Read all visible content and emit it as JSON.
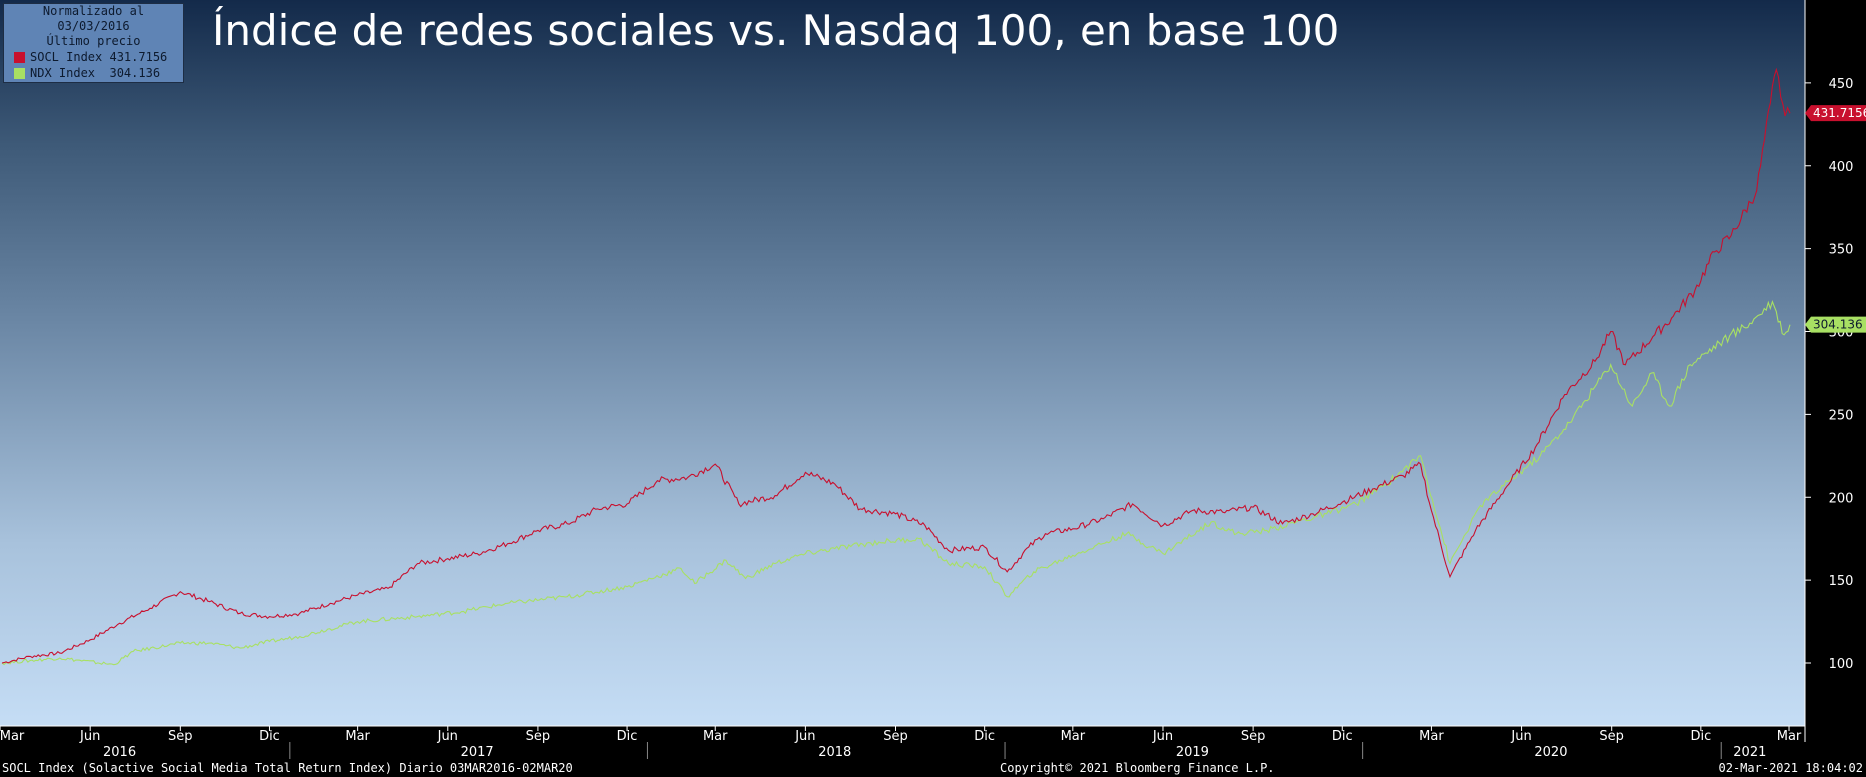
{
  "title": "Índice de redes sociales vs. Nasdaq 100, en base 100",
  "legend": {
    "header_line1": "Normalizado al 03/03/2016",
    "header_line2": "Último precio",
    "items": [
      {
        "name": "SOCL Index",
        "value": "431.7156",
        "color": "#c8102e"
      },
      {
        "name": "NDX Index",
        "value": "304.136",
        "color": "#a8e063"
      }
    ]
  },
  "footer": {
    "left": "SOCL Index (Solactive Social Media Total Return Index)  Diario 03MAR2016-02MAR20",
    "center": "Copyright© 2021 Bloomberg Finance L.P.",
    "right": "02-Mar-2021 18:04:02"
  },
  "chart_data": {
    "type": "line",
    "title": "Índice de redes sociales vs. Nasdaq 100, en base 100",
    "ylim": [
      62,
      500
    ],
    "y_ticks": [
      100,
      150,
      200,
      250,
      300,
      350,
      400,
      450
    ],
    "x_range": [
      "2016-03-03",
      "2021-03-02"
    ],
    "x_month_ticks": [
      {
        "label": "Mar",
        "date": "2016-03-01"
      },
      {
        "label": "Jun",
        "date": "2016-06-01"
      },
      {
        "label": "Sep",
        "date": "2016-09-01"
      },
      {
        "label": "Dic",
        "date": "2016-12-01"
      },
      {
        "label": "Mar",
        "date": "2017-03-01"
      },
      {
        "label": "Jun",
        "date": "2017-06-01"
      },
      {
        "label": "Sep",
        "date": "2017-09-01"
      },
      {
        "label": "Dic",
        "date": "2017-12-01"
      },
      {
        "label": "Mar",
        "date": "2018-03-01"
      },
      {
        "label": "Jun",
        "date": "2018-06-01"
      },
      {
        "label": "Sep",
        "date": "2018-09-01"
      },
      {
        "label": "Dic",
        "date": "2018-12-01"
      },
      {
        "label": "Mar",
        "date": "2019-03-01"
      },
      {
        "label": "Jun",
        "date": "2019-06-01"
      },
      {
        "label": "Sep",
        "date": "2019-09-01"
      },
      {
        "label": "Dic",
        "date": "2019-12-01"
      },
      {
        "label": "Mar",
        "date": "2020-03-01"
      },
      {
        "label": "Jun",
        "date": "2020-06-01"
      },
      {
        "label": "Sep",
        "date": "2020-09-01"
      },
      {
        "label": "Dic",
        "date": "2020-12-01"
      },
      {
        "label": "Mar",
        "date": "2021-03-01"
      }
    ],
    "x_year_labels": [
      {
        "label": "2016",
        "date": "2016-07-01"
      },
      {
        "label": "2017",
        "date": "2017-07-01"
      },
      {
        "label": "2018",
        "date": "2018-07-01"
      },
      {
        "label": "2019",
        "date": "2019-07-01"
      },
      {
        "label": "2020",
        "date": "2020-07-01"
      },
      {
        "label": "2021",
        "date": "2021-01-20"
      }
    ],
    "x_year_boundaries": [
      "2017-01-01",
      "2018-01-01",
      "2019-01-01",
      "2020-01-01",
      "2021-01-01"
    ],
    "series": [
      {
        "name": "SOCL Index",
        "color": "#c8102e",
        "last_value": "431.7156",
        "points": [
          [
            "2016-03-03",
            100
          ],
          [
            "2016-04-01",
            104
          ],
          [
            "2016-05-01",
            106
          ],
          [
            "2016-06-01",
            114
          ],
          [
            "2016-07-01",
            124
          ],
          [
            "2016-08-01",
            133
          ],
          [
            "2016-09-01",
            143
          ],
          [
            "2016-10-01",
            137
          ],
          [
            "2016-11-01",
            130
          ],
          [
            "2016-12-01",
            128
          ],
          [
            "2017-01-01",
            130
          ],
          [
            "2017-02-01",
            136
          ],
          [
            "2017-03-01",
            141
          ],
          [
            "2017-04-01",
            145
          ],
          [
            "2017-05-01",
            160
          ],
          [
            "2017-06-01",
            163
          ],
          [
            "2017-07-01",
            166
          ],
          [
            "2017-08-01",
            172
          ],
          [
            "2017-09-01",
            180
          ],
          [
            "2017-10-01",
            184
          ],
          [
            "2017-11-01",
            193
          ],
          [
            "2017-12-01",
            196
          ],
          [
            "2018-01-01",
            210
          ],
          [
            "2018-02-01",
            212
          ],
          [
            "2018-03-01",
            220
          ],
          [
            "2018-03-25",
            196
          ],
          [
            "2018-05-01",
            201
          ],
          [
            "2018-06-01",
            215
          ],
          [
            "2018-07-01",
            208
          ],
          [
            "2018-07-27",
            193
          ],
          [
            "2018-09-01",
            190
          ],
          [
            "2018-10-01",
            183
          ],
          [
            "2018-10-25",
            168
          ],
          [
            "2018-12-01",
            170
          ],
          [
            "2018-12-24",
            155
          ],
          [
            "2019-01-15",
            170
          ],
          [
            "2019-02-01",
            178
          ],
          [
            "2019-03-01",
            181
          ],
          [
            "2019-04-01",
            187
          ],
          [
            "2019-05-01",
            196
          ],
          [
            "2019-06-01",
            183
          ],
          [
            "2019-07-01",
            192
          ],
          [
            "2019-08-01",
            191
          ],
          [
            "2019-09-01",
            194
          ],
          [
            "2019-10-01",
            184
          ],
          [
            "2019-11-01",
            190
          ],
          [
            "2019-12-01",
            197
          ],
          [
            "2020-01-01",
            205
          ],
          [
            "2020-02-01",
            213
          ],
          [
            "2020-02-19",
            220
          ],
          [
            "2020-03-01",
            192
          ],
          [
            "2020-03-20",
            152
          ],
          [
            "2020-04-15",
            180
          ],
          [
            "2020-05-15",
            205
          ],
          [
            "2020-06-15",
            230
          ],
          [
            "2020-07-15",
            262
          ],
          [
            "2020-08-15",
            282
          ],
          [
            "2020-08-31",
            300
          ],
          [
            "2020-09-15",
            280
          ],
          [
            "2020-10-15",
            298
          ],
          [
            "2020-11-01",
            308
          ],
          [
            "2020-11-25",
            325
          ],
          [
            "2020-12-15",
            348
          ],
          [
            "2021-01-01",
            358
          ],
          [
            "2021-01-27",
            385
          ],
          [
            "2021-02-10",
            438
          ],
          [
            "2021-02-16",
            458
          ],
          [
            "2021-02-25",
            430
          ],
          [
            "2021-03-02",
            431.7156
          ]
        ]
      },
      {
        "name": "NDX Index",
        "color": "#a8e063",
        "last_value": "304.136",
        "points": [
          [
            "2016-03-03",
            100
          ],
          [
            "2016-05-01",
            103
          ],
          [
            "2016-06-25",
            99
          ],
          [
            "2016-07-15",
            107
          ],
          [
            "2016-09-01",
            112
          ],
          [
            "2016-10-01",
            112
          ],
          [
            "2016-11-01",
            109
          ],
          [
            "2016-12-01",
            113
          ],
          [
            "2017-01-01",
            116
          ],
          [
            "2017-03-01",
            125
          ],
          [
            "2017-05-01",
            128
          ],
          [
            "2017-06-15",
            131
          ],
          [
            "2017-08-01",
            136
          ],
          [
            "2017-10-01",
            140
          ],
          [
            "2017-12-01",
            146
          ],
          [
            "2018-01-25",
            157
          ],
          [
            "2018-02-08",
            148
          ],
          [
            "2018-03-12",
            162
          ],
          [
            "2018-04-01",
            151
          ],
          [
            "2018-05-01",
            160
          ],
          [
            "2018-06-01",
            166
          ],
          [
            "2018-07-01",
            169
          ],
          [
            "2018-08-15",
            173
          ],
          [
            "2018-09-25",
            175
          ],
          [
            "2018-10-25",
            160
          ],
          [
            "2018-12-01",
            158
          ],
          [
            "2018-12-24",
            140
          ],
          [
            "2019-01-20",
            155
          ],
          [
            "2019-03-01",
            165
          ],
          [
            "2019-04-25",
            178
          ],
          [
            "2019-06-01",
            166
          ],
          [
            "2019-07-20",
            185
          ],
          [
            "2019-08-15",
            178
          ],
          [
            "2019-09-15",
            180
          ],
          [
            "2019-10-15",
            185
          ],
          [
            "2019-11-15",
            190
          ],
          [
            "2019-12-15",
            196
          ],
          [
            "2020-01-15",
            208
          ],
          [
            "2020-02-19",
            225
          ],
          [
            "2020-03-20",
            160
          ],
          [
            "2020-04-20",
            195
          ],
          [
            "2020-05-20",
            210
          ],
          [
            "2020-06-20",
            225
          ],
          [
            "2020-07-20",
            245
          ],
          [
            "2020-08-31",
            280
          ],
          [
            "2020-09-22",
            255
          ],
          [
            "2020-10-12",
            275
          ],
          [
            "2020-10-30",
            255
          ],
          [
            "2020-11-20",
            280
          ],
          [
            "2020-12-20",
            293
          ],
          [
            "2021-01-20",
            305
          ],
          [
            "2021-02-12",
            318
          ],
          [
            "2021-02-24",
            298
          ],
          [
            "2021-03-02",
            304.136
          ]
        ]
      }
    ]
  }
}
